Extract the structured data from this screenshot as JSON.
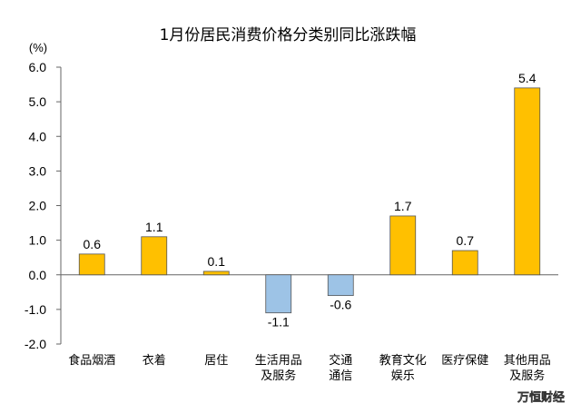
{
  "chart_data": {
    "type": "bar",
    "title": "1月份居民消费价格分类别同比涨跌幅",
    "unit": "(%)",
    "categories": [
      [
        "食品烟酒"
      ],
      [
        "衣着"
      ],
      [
        "居住"
      ],
      [
        "生活用品",
        "及服务"
      ],
      [
        "交通",
        "通信"
      ],
      [
        "教育文化",
        "娱乐"
      ],
      [
        "医疗保健"
      ],
      [
        "其他用品",
        "及服务"
      ]
    ],
    "values": [
      0.6,
      1.1,
      0.1,
      -1.1,
      -0.6,
      1.7,
      0.7,
      5.4
    ],
    "value_labels": [
      "0.6",
      "1.1",
      "0.1",
      "-1.1",
      "-0.6",
      "1.7",
      "0.7",
      "5.4"
    ],
    "ylim": [
      -2.0,
      6.0
    ],
    "yticks": [
      "6.0",
      "5.0",
      "4.0",
      "3.0",
      "2.0",
      "1.0",
      "0.0",
      "-1.0",
      "-2.0"
    ],
    "ytick_values": [
      6,
      5,
      4,
      3,
      2,
      1,
      0,
      -1,
      -2
    ],
    "grid": false,
    "colors": {
      "positive": "#FFC000",
      "negative": "#9DC3E6",
      "outline": "#555555"
    }
  },
  "watermark": "万恒财经"
}
